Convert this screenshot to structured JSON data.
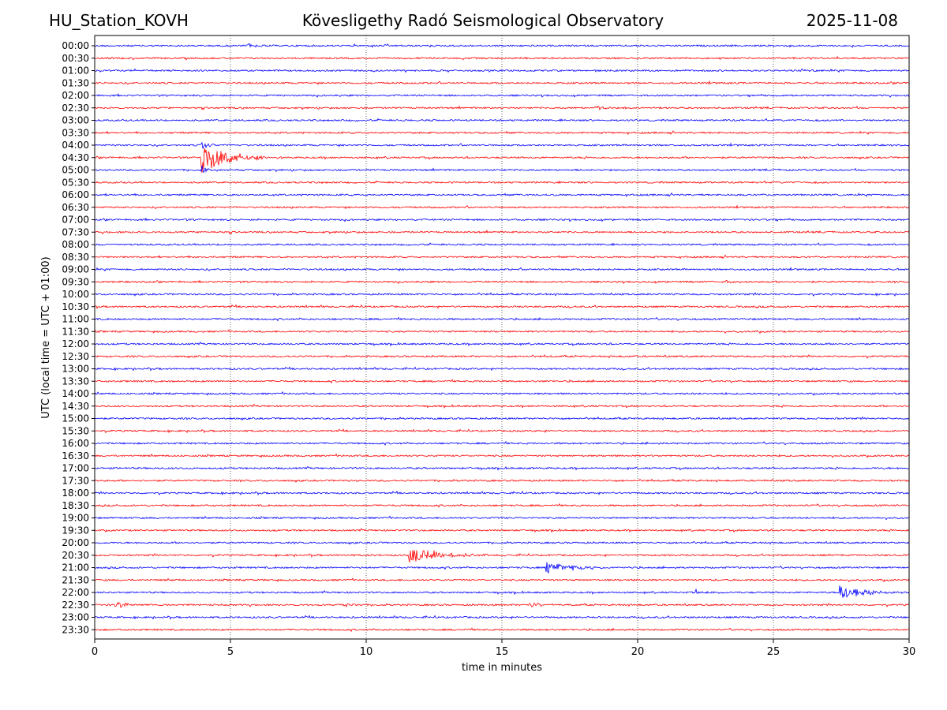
{
  "header": {
    "station": "HU_Station_KOVH",
    "observatory": "Kövesligethy Radó Seismological Observatory",
    "date": "2025-11-08"
  },
  "chart_data": {
    "type": "line",
    "title": "Kövesligethy Radó Seismological Observatory",
    "xlabel": "time in minutes",
    "ylabel": "UTC (local time = UTC + 01:00)",
    "xlim": [
      0,
      30
    ],
    "xticks": [
      "0",
      "5",
      "10",
      "15",
      "20",
      "25",
      "30"
    ],
    "xtick_values": [
      0,
      5,
      10,
      15,
      20,
      25,
      30
    ],
    "grid": "vertical dotted at x ticks",
    "colors": {
      "even": "#0000ff",
      "odd": "#ff0000",
      "axis": "#000000"
    },
    "rows": [
      "00:00",
      "00:30",
      "01:00",
      "01:30",
      "02:00",
      "02:30",
      "03:00",
      "03:30",
      "04:00",
      "04:30",
      "05:00",
      "05:30",
      "06:00",
      "06:30",
      "07:00",
      "07:30",
      "08:00",
      "08:30",
      "09:00",
      "09:30",
      "10:00",
      "10:30",
      "11:00",
      "11:30",
      "12:00",
      "12:30",
      "13:00",
      "13:30",
      "14:00",
      "14:30",
      "15:00",
      "15:30",
      "16:00",
      "16:30",
      "17:00",
      "17:30",
      "18:00",
      "18:30",
      "19:00",
      "19:30",
      "20:00",
      "20:30",
      "21:00",
      "21:30",
      "22:00",
      "22:30",
      "23:00",
      "23:30"
    ],
    "events": [
      {
        "row": "00:00",
        "start_min": 5.6,
        "duration_min": 1.2,
        "amplitude": 0.35
      },
      {
        "row": "01:00",
        "start_min": 25.9,
        "duration_min": 0.9,
        "amplitude": 0.3
      },
      {
        "row": "02:30",
        "start_min": 18.4,
        "duration_min": 1.8,
        "amplitude": 0.3
      },
      {
        "row": "04:00",
        "start_min": 3.9,
        "duration_min": 0.6,
        "amplitude": 1.2
      },
      {
        "row": "04:30",
        "start_min": 3.9,
        "duration_min": 3.0,
        "amplitude": 2.6
      },
      {
        "row": "05:00",
        "start_min": 3.9,
        "duration_min": 0.5,
        "amplitude": 1.0
      },
      {
        "row": "09:30",
        "start_min": 23.2,
        "duration_min": 0.8,
        "amplitude": 0.3
      },
      {
        "row": "20:30",
        "start_min": 11.55,
        "duration_min": 3.5,
        "amplitude": 1.3
      },
      {
        "row": "21:00",
        "start_min": 16.6,
        "duration_min": 3.2,
        "amplitude": 0.9
      },
      {
        "row": "22:00",
        "start_min": 22.1,
        "duration_min": 1.0,
        "amplitude": 0.6
      },
      {
        "row": "22:00",
        "start_min": 27.4,
        "duration_min": 2.6,
        "amplitude": 1.3
      },
      {
        "row": "22:30",
        "start_min": 0.7,
        "duration_min": 1.8,
        "amplitude": 0.55
      },
      {
        "row": "22:30",
        "start_min": 9.1,
        "duration_min": 0.8,
        "amplitude": 0.4
      },
      {
        "row": "22:30",
        "start_min": 16.0,
        "duration_min": 1.5,
        "amplitude": 0.45
      }
    ]
  }
}
